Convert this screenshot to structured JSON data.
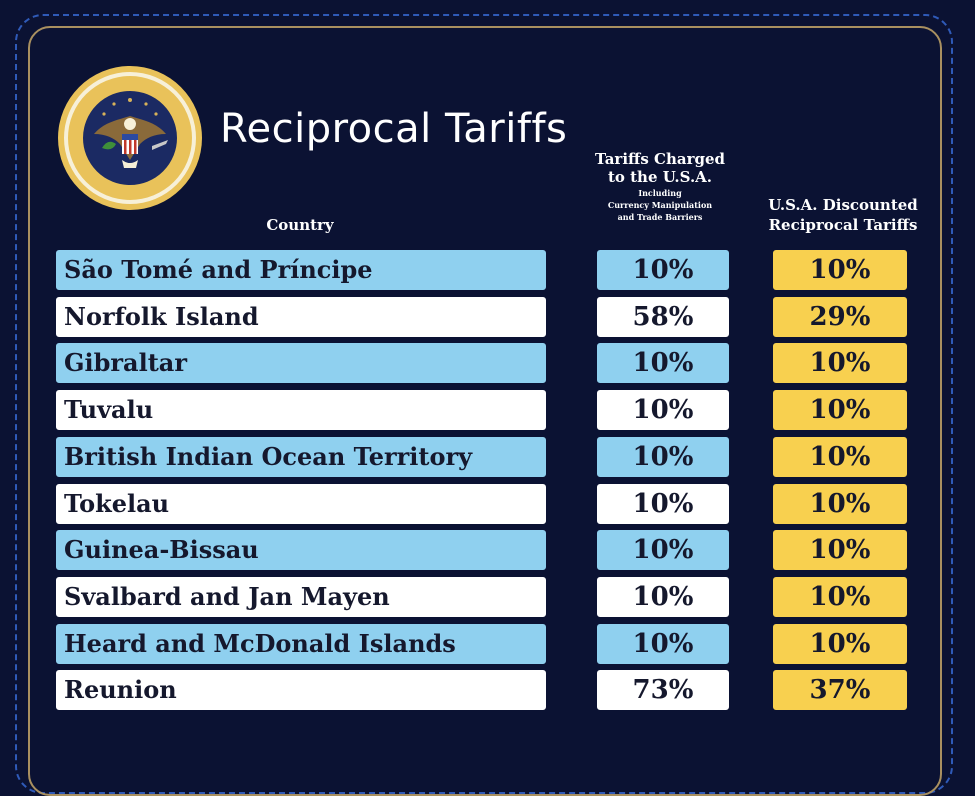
{
  "header": {
    "title": "Reciprocal Tariffs",
    "country_label": "Country",
    "charged_label_line1": "Tariffs Charged",
    "charged_label_line2": "to the U.S.A.",
    "charged_sub_line1": "Including",
    "charged_sub_line2": "Currency Manipulation",
    "charged_sub_line3": "and Trade Barriers",
    "reciprocal_label_line1": "U.S.A. Discounted",
    "reciprocal_label_line2": "Reciprocal Tariffs"
  },
  "seal": {
    "logo_text": "SEAL OF THE PRESIDENT OF THE UNITED STATES"
  },
  "colors": {
    "background": "#0b1233",
    "row_blue": "#8fd0ef",
    "row_white": "#ffffff",
    "reciprocal_yellow": "#f8d04f",
    "frame_gold": "#a99060"
  },
  "chart_data": {
    "type": "table",
    "columns": [
      "Country",
      "Tariffs Charged to the U.S.A.",
      "U.S.A. Discounted Reciprocal Tariffs"
    ],
    "rows": [
      {
        "country": "São Tomé and Príncipe",
        "charged": "10%",
        "reciprocal": "10%"
      },
      {
        "country": "Norfolk Island",
        "charged": "58%",
        "reciprocal": "29%"
      },
      {
        "country": "Gibraltar",
        "charged": "10%",
        "reciprocal": "10%"
      },
      {
        "country": "Tuvalu",
        "charged": "10%",
        "reciprocal": "10%"
      },
      {
        "country": "British Indian Ocean Territory",
        "charged": "10%",
        "reciprocal": "10%"
      },
      {
        "country": "Tokelau",
        "charged": "10%",
        "reciprocal": "10%"
      },
      {
        "country": "Guinea-Bissau",
        "charged": "10%",
        "reciprocal": "10%"
      },
      {
        "country": "Svalbard and Jan Mayen",
        "charged": "10%",
        "reciprocal": "10%"
      },
      {
        "country": "Heard and McDonald Islands",
        "charged": "10%",
        "reciprocal": "10%"
      },
      {
        "country": "Reunion",
        "charged": "73%",
        "reciprocal": "37%"
      }
    ]
  }
}
